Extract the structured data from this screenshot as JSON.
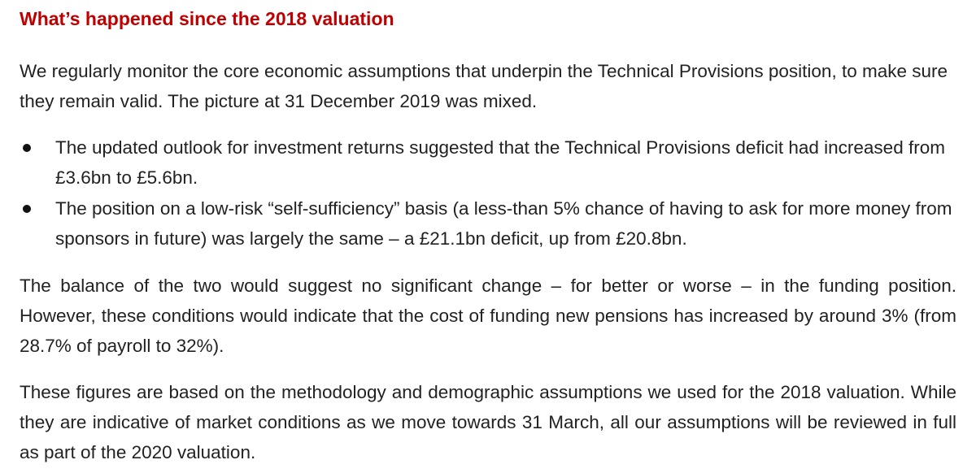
{
  "heading": "What’s happened since the 2018 valuation",
  "paragraphs": {
    "intro": "We regularly monitor the core economic assumptions that underpin the Technical Provisions position, to make sure they remain valid. The picture at 31 December 2019 was mixed.",
    "balance": "The balance of the two would suggest no significant change – for better or worse – in the funding position. However, these conditions would indicate that the cost of funding new pensions has increased by around 3% (from 28.7% of payroll to 32%).",
    "figures": "These figures are based on the methodology and demographic assumptions we used for the 2018 valuation. While they are indicative of market conditions as we move towards 31 March, all our assumptions will be reviewed in full as part of the 2020 valuation."
  },
  "bullets": [
    "The updated outlook for investment returns suggested that the Technical Provisions deficit had increased from £3.6bn to £5.6bn.",
    "The position on a low-risk “self-sufficiency” basis (a less-than 5% chance of having to ask for more money from sponsors in future) was largely the same – a £21.1bn deficit, up from £20.8bn."
  ],
  "colors": {
    "heading": "#c00000",
    "body_text": "#222222",
    "background": "#ffffff"
  }
}
